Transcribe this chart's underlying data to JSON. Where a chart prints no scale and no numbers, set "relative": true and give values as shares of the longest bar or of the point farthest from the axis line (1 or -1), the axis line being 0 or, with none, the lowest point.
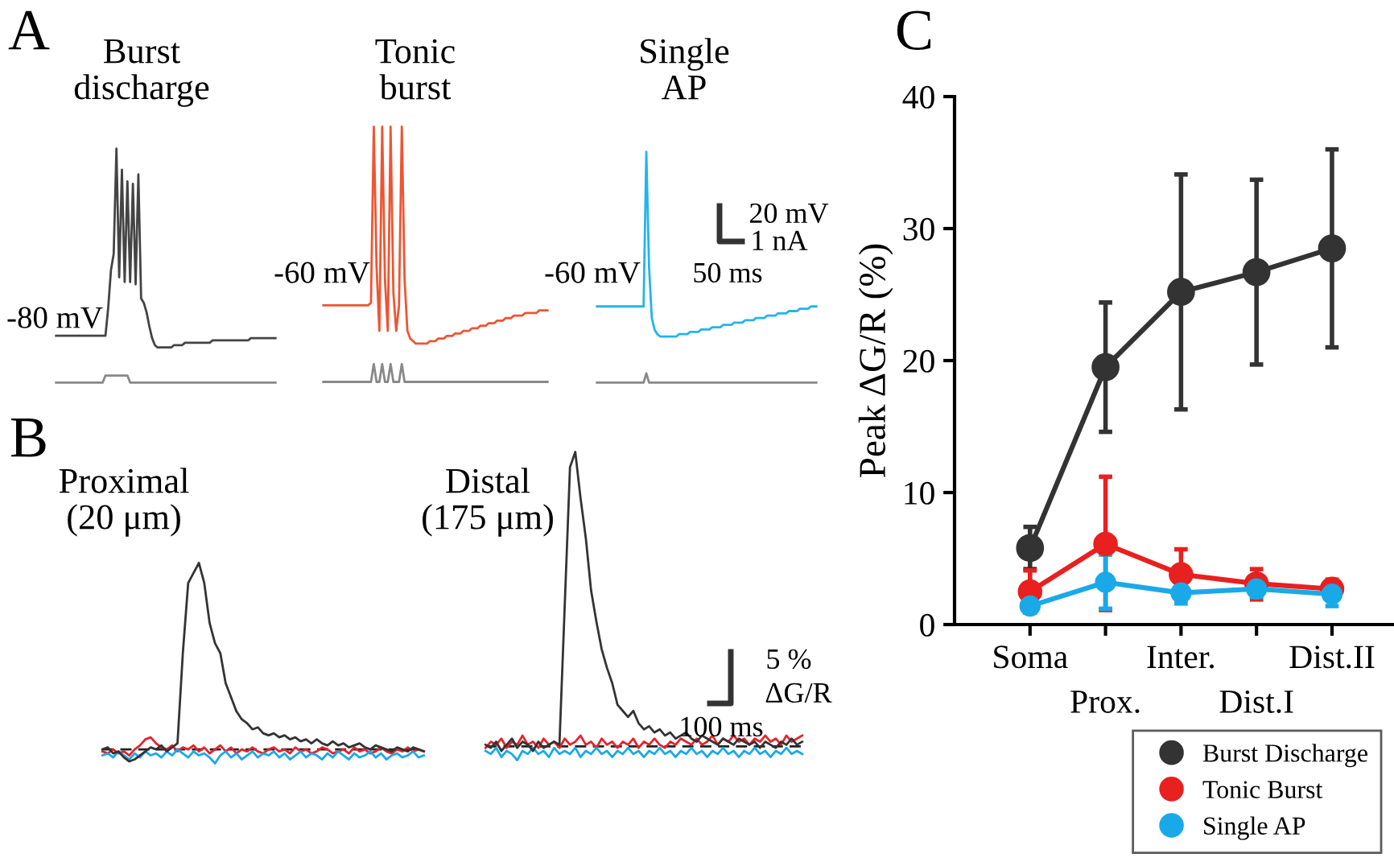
{
  "chart_data": [
    {
      "type": "line",
      "relative": true,
      "title": "Burst\ndischarge",
      "annotations": [
        "A",
        "-80 mV"
      ],
      "categories": [
        null,
        null,
        null,
        null,
        null,
        null,
        null,
        null,
        null,
        null,
        null,
        null,
        null,
        null,
        null,
        null,
        null,
        null,
        null,
        null,
        null,
        null,
        null,
        null,
        null,
        null,
        null,
        null,
        null,
        null,
        null,
        null,
        null,
        null,
        null,
        null,
        null,
        null,
        null,
        null,
        null,
        null,
        null,
        null,
        null,
        null,
        null,
        null,
        null,
        null,
        null,
        null,
        null,
        null,
        null,
        null,
        null,
        null,
        null,
        null,
        null,
        null,
        null,
        null,
        null,
        null,
        null,
        null,
        null,
        null,
        null,
        null,
        null,
        null,
        null,
        null,
        null,
        null,
        null,
        null,
        null
      ],
      "series": [
        {
          "color": "#444444",
          "values": [
            0.2,
            0.2,
            0.2,
            0.2,
            0.2,
            0.2,
            0.2,
            0.2,
            0.2,
            0.2,
            0.2,
            0.2,
            0.2,
            0.2,
            0.2,
            0.2,
            0.2,
            0.2,
            0.2,
            0.32,
            0.48,
            0.55,
            1.0,
            0.45,
            0.91,
            0.43,
            0.86,
            0.43,
            0.85,
            0.42,
            0.89,
            0.36,
            0.34,
            0.3,
            0.24,
            0.19,
            0.16,
            0.15,
            0.15,
            0.15,
            0.15,
            0.15,
            0.15,
            0.16,
            0.16,
            0.16,
            0.16,
            0.17,
            0.17,
            0.17,
            0.17,
            0.17,
            0.17,
            0.17,
            0.17,
            0.17,
            0.17,
            0.18,
            0.18,
            0.18,
            0.18,
            0.18,
            0.18,
            0.18,
            0.18,
            0.18,
            0.18,
            0.18,
            0.18,
            0.18,
            0.18,
            0.19,
            0.19,
            0.19,
            0.19,
            0.19,
            0.19,
            0.19,
            0.19,
            0.19,
            0.19
          ]
        },
        {
          "color": "#888888",
          "values": [
            0,
            0,
            0,
            0,
            0,
            0,
            0,
            0,
            0,
            0,
            0,
            0,
            0,
            0,
            0,
            0,
            0,
            0,
            0.03,
            0.03,
            0.03,
            0.03,
            0.03,
            0.03,
            0.03,
            0.03,
            0.03,
            0,
            0,
            0,
            0,
            0,
            0,
            0,
            0,
            0,
            0,
            0,
            0,
            0,
            0,
            0,
            0,
            0,
            0,
            0,
            0,
            0,
            0,
            0,
            0,
            0,
            0,
            0,
            0,
            0,
            0,
            0,
            0,
            0,
            0,
            0,
            0,
            0,
            0,
            0,
            0,
            0,
            0,
            0,
            0,
            0,
            0,
            0,
            0,
            0,
            0,
            0,
            0,
            0,
            0
          ]
        }
      ]
    },
    {
      "type": "line",
      "relative": true,
      "title": "Tonic\nburst",
      "annotations": [
        "-60 mV"
      ],
      "categories": [
        null,
        null,
        null,
        null,
        null,
        null,
        null,
        null,
        null,
        null,
        null,
        null,
        null,
        null,
        null,
        null,
        null,
        null,
        null,
        null,
        null,
        null,
        null,
        null,
        null,
        null,
        null,
        null,
        null,
        null,
        null,
        null,
        null,
        null,
        null,
        null,
        null,
        null,
        null,
        null,
        null,
        null,
        null,
        null,
        null,
        null,
        null,
        null,
        null,
        null,
        null,
        null,
        null,
        null,
        null,
        null,
        null,
        null,
        null,
        null,
        null,
        null,
        null,
        null,
        null,
        null,
        null,
        null,
        null,
        null,
        null,
        null,
        null,
        null,
        null,
        null,
        null,
        null,
        null,
        null,
        null
      ],
      "series": [
        {
          "color": "#ee5533",
          "values": [
            0.3,
            0.3,
            0.3,
            0.3,
            0.3,
            0.3,
            0.3,
            0.3,
            0.3,
            0.3,
            0.3,
            0.3,
            0.3,
            0.3,
            0.3,
            0.3,
            0.3,
            0.31,
            1.0,
            0.45,
            0.2,
            1.0,
            0.4,
            0.2,
            1.0,
            0.35,
            0.2,
            0.3,
            1.0,
            0.4,
            0.2,
            0.17,
            0.16,
            0.15,
            0.15,
            0.15,
            0.15,
            0.15,
            0.16,
            0.16,
            0.16,
            0.17,
            0.17,
            0.17,
            0.18,
            0.18,
            0.18,
            0.19,
            0.19,
            0.19,
            0.2,
            0.2,
            0.2,
            0.21,
            0.21,
            0.21,
            0.22,
            0.22,
            0.22,
            0.23,
            0.23,
            0.23,
            0.24,
            0.24,
            0.24,
            0.25,
            0.25,
            0.25,
            0.26,
            0.26,
            0.26,
            0.26,
            0.27,
            0.27,
            0.27,
            0.27,
            0.27,
            0.28,
            0.28,
            0.28,
            0.28
          ]
        },
        {
          "color": "#888888",
          "values": [
            0,
            0,
            0,
            0,
            0,
            0,
            0,
            0,
            0,
            0,
            0,
            0,
            0,
            0,
            0,
            0,
            0,
            0,
            0.07,
            0,
            0,
            0.07,
            0,
            0,
            0.07,
            0,
            0,
            0,
            0.07,
            0,
            0,
            0,
            0,
            0,
            0,
            0,
            0,
            0,
            0,
            0,
            0,
            0,
            0,
            0,
            0,
            0,
            0,
            0,
            0,
            0,
            0,
            0,
            0,
            0,
            0,
            0,
            0,
            0,
            0,
            0,
            0,
            0,
            0,
            0,
            0,
            0,
            0,
            0,
            0,
            0,
            0,
            0,
            0,
            0,
            0,
            0,
            0,
            0,
            0,
            0,
            0
          ]
        }
      ]
    },
    {
      "type": "line",
      "relative": true,
      "title": "Single\nAP",
      "annotations": [
        "-60 mV",
        "20 mV",
        "1 nA",
        "50 ms"
      ],
      "categories": [
        null,
        null,
        null,
        null,
        null,
        null,
        null,
        null,
        null,
        null,
        null,
        null,
        null,
        null,
        null,
        null,
        null,
        null,
        null,
        null,
        null,
        null,
        null,
        null,
        null,
        null,
        null,
        null,
        null,
        null,
        null,
        null,
        null,
        null,
        null,
        null,
        null,
        null,
        null,
        null,
        null,
        null,
        null,
        null,
        null,
        null,
        null,
        null,
        null,
        null,
        null,
        null,
        null,
        null,
        null,
        null,
        null,
        null,
        null,
        null,
        null,
        null,
        null,
        null,
        null,
        null,
        null,
        null,
        null,
        null,
        null,
        null,
        null,
        null,
        null,
        null,
        null,
        null,
        null,
        null,
        null
      ],
      "series": [
        {
          "color": "#22b4ec",
          "values": [
            0.33,
            0.33,
            0.33,
            0.33,
            0.33,
            0.33,
            0.33,
            0.33,
            0.33,
            0.33,
            0.33,
            0.33,
            0.33,
            0.33,
            0.33,
            0.33,
            0.33,
            0.33,
            1.0,
            0.5,
            0.28,
            0.23,
            0.21,
            0.2,
            0.2,
            0.2,
            0.2,
            0.2,
            0.2,
            0.2,
            0.21,
            0.21,
            0.21,
            0.21,
            0.22,
            0.22,
            0.22,
            0.22,
            0.23,
            0.23,
            0.23,
            0.23,
            0.24,
            0.24,
            0.24,
            0.24,
            0.25,
            0.25,
            0.25,
            0.25,
            0.26,
            0.26,
            0.26,
            0.26,
            0.27,
            0.27,
            0.27,
            0.27,
            0.28,
            0.28,
            0.28,
            0.28,
            0.29,
            0.29,
            0.29,
            0.29,
            0.3,
            0.3,
            0.3,
            0.3,
            0.31,
            0.31,
            0.31,
            0.31,
            0.32,
            0.32,
            0.32,
            0.32,
            0.33,
            0.33,
            0.33
          ]
        },
        {
          "color": "#888888",
          "values": [
            0,
            0,
            0,
            0,
            0,
            0,
            0,
            0,
            0,
            0,
            0,
            0,
            0,
            0,
            0,
            0,
            0,
            0,
            0.04,
            0,
            0,
            0,
            0,
            0,
            0,
            0,
            0,
            0,
            0,
            0,
            0,
            0,
            0,
            0,
            0,
            0,
            0,
            0,
            0,
            0,
            0,
            0,
            0,
            0,
            0,
            0,
            0,
            0,
            0,
            0,
            0,
            0,
            0,
            0,
            0,
            0,
            0,
            0,
            0,
            0,
            0,
            0,
            0,
            0,
            0,
            0,
            0,
            0,
            0,
            0,
            0,
            0,
            0,
            0,
            0,
            0,
            0,
            0,
            0,
            0,
            0
          ]
        }
      ]
    },
    {
      "type": "line",
      "relative": true,
      "title": "Proximal\n(20 μm)",
      "annotations": [
        "B"
      ],
      "categories": [
        null,
        null,
        null,
        null,
        null,
        null,
        null,
        null,
        null,
        null,
        null,
        null,
        null,
        null,
        null,
        null,
        null,
        null,
        null,
        null,
        null,
        null,
        null,
        null,
        null,
        null,
        null,
        null,
        null,
        null,
        null,
        null,
        null,
        null,
        null,
        null,
        null,
        null,
        null,
        null,
        null,
        null,
        null,
        null,
        null,
        null,
        null,
        null,
        null,
        null,
        null,
        null,
        null,
        null,
        null,
        null,
        null,
        null,
        null,
        null,
        null
      ],
      "series": [
        {
          "color": "#222222",
          "line_style": "dashed",
          "values": [
            0.07,
            0.07,
            0.07,
            0.07,
            0.07,
            0.07,
            0.07,
            0.07,
            0.07,
            0.07,
            0.07,
            0.07,
            0.07,
            0.07,
            0.07,
            0.07,
            0.07,
            0.07,
            0.07,
            0.07,
            0.07,
            0.07,
            0.07,
            0.07,
            0.07,
            0.07,
            0.07,
            0.07,
            0.07,
            0.07,
            0.07,
            0.07,
            0.07,
            0.07,
            0.07,
            0.07,
            0.07,
            0.07,
            0.07,
            0.07,
            0.07,
            0.07,
            0.07,
            0.07,
            0.07,
            0.07,
            0.07,
            0.07,
            0.07,
            0.07,
            0.07,
            0.07,
            0.07,
            0.07,
            0.07,
            0.07,
            0.07,
            0.07,
            0.07,
            0.07,
            0.07
          ]
        },
        {
          "color": "#e8222a",
          "values": [
            0.06,
            0.05,
            0.07,
            0.05,
            0.06,
            0.04,
            0.07,
            0.09,
            0.12,
            0.13,
            0.1,
            0.08,
            0.07,
            0.09,
            0.06,
            0.08,
            0.07,
            0.09,
            0.06,
            0.08,
            0.05,
            0.07,
            0.09,
            0.06,
            0.08,
            0.05,
            0.07,
            0.06,
            0.08,
            0.06,
            0.05,
            0.07,
            0.08,
            0.06,
            0.07,
            0.05,
            0.08,
            0.06,
            0.07,
            0.05,
            0.06,
            0.08,
            0.07,
            0.05,
            0.06,
            0.07,
            0.05,
            0.08,
            0.06,
            0.07,
            0.05,
            0.06,
            0.08,
            0.06,
            0.05,
            0.07,
            0.06,
            0.08,
            0.06,
            0.07,
            0.06
          ]
        },
        {
          "color": "#1aa9e8",
          "values": [
            0.04,
            0.05,
            0.03,
            0.06,
            0.04,
            0.02,
            0.05,
            0.03,
            0.06,
            0.04,
            0.05,
            0.03,
            0.06,
            0.04,
            0.07,
            0.05,
            0.03,
            0.06,
            0.04,
            0.05,
            0.03,
            0.0,
            0.04,
            0.06,
            0.03,
            0.05,
            0.02,
            0.04,
            0.06,
            0.03,
            0.05,
            0.04,
            0.06,
            0.03,
            0.05,
            0.02,
            0.04,
            0.06,
            0.03,
            0.05,
            0.04,
            0.02,
            0.05,
            0.03,
            0.06,
            0.04,
            0.02,
            0.05,
            0.03,
            0.04,
            0.06,
            0.03,
            0.05,
            0.02,
            0.04,
            0.05,
            0.03,
            0.04,
            0.06,
            0.03,
            0.04
          ]
        },
        {
          "color": "#333333",
          "values": [
            0.07,
            0.08,
            0.05,
            0.06,
            0.03,
            0.01,
            0.02,
            0.04,
            0.06,
            0.08,
            0.07,
            0.09,
            0.06,
            0.08,
            0.1,
            0.55,
            0.9,
            0.95,
            1.0,
            0.9,
            0.7,
            0.6,
            0.55,
            0.4,
            0.33,
            0.26,
            0.22,
            0.2,
            0.17,
            0.18,
            0.15,
            0.14,
            0.15,
            0.13,
            0.14,
            0.12,
            0.13,
            0.11,
            0.12,
            0.1,
            0.12,
            0.1,
            0.09,
            0.11,
            0.09,
            0.1,
            0.08,
            0.09,
            0.1,
            0.08,
            0.07,
            0.09,
            0.08,
            0.07,
            0.06,
            0.08,
            0.07,
            0.06,
            0.08,
            0.07,
            0.06
          ]
        }
      ]
    },
    {
      "type": "line",
      "relative": true,
      "title": "Distal\n(175 μm)",
      "annotations": [
        "5 %",
        "ΔG/R",
        "100 ms"
      ],
      "categories": [
        null,
        null,
        null,
        null,
        null,
        null,
        null,
        null,
        null,
        null,
        null,
        null,
        null,
        null,
        null,
        null,
        null,
        null,
        null,
        null,
        null,
        null,
        null,
        null,
        null,
        null,
        null,
        null,
        null,
        null,
        null,
        null,
        null,
        null,
        null,
        null,
        null,
        null,
        null,
        null,
        null,
        null,
        null,
        null,
        null,
        null,
        null,
        null,
        null,
        null,
        null,
        null,
        null,
        null,
        null,
        null,
        null,
        null,
        null,
        null,
        null
      ],
      "series": [
        {
          "color": "#222222",
          "line_style": "dashed",
          "values": [
            0.045,
            0.045,
            0.045,
            0.045,
            0.045,
            0.045,
            0.045,
            0.045,
            0.045,
            0.045,
            0.045,
            0.045,
            0.045,
            0.045,
            0.045,
            0.045,
            0.045,
            0.045,
            0.045,
            0.045,
            0.045,
            0.045,
            0.045,
            0.045,
            0.045,
            0.045,
            0.045,
            0.045,
            0.045,
            0.045,
            0.045,
            0.045,
            0.045,
            0.045,
            0.045,
            0.045,
            0.045,
            0.045,
            0.045,
            0.045,
            0.045,
            0.045,
            0.045,
            0.045,
            0.045,
            0.045,
            0.045,
            0.045,
            0.045,
            0.045,
            0.045,
            0.045,
            0.045,
            0.045,
            0.045,
            0.045,
            0.045,
            0.045,
            0.045,
            0.045,
            0.045
          ]
        },
        {
          "color": "#e8222a",
          "values": [
            0.04,
            0.06,
            0.05,
            0.07,
            0.04,
            0.06,
            0.05,
            0.08,
            0.05,
            0.06,
            0.04,
            0.07,
            0.05,
            0.06,
            0.04,
            0.07,
            0.05,
            0.06,
            0.08,
            0.05,
            0.06,
            0.04,
            0.07,
            0.05,
            0.06,
            0.04,
            0.06,
            0.05,
            0.07,
            0.04,
            0.06,
            0.05,
            0.07,
            0.05,
            0.04,
            0.06,
            0.05,
            0.07,
            0.06,
            0.05,
            0.07,
            0.05,
            0.06,
            0.08,
            0.05,
            0.07,
            0.06,
            0.08,
            0.06,
            0.07,
            0.05,
            0.07,
            0.06,
            0.08,
            0.06,
            0.07,
            0.05,
            0.08,
            0.06,
            0.07,
            0.08
          ]
        },
        {
          "color": "#1aa9e8",
          "values": [
            0.03,
            0.02,
            0.04,
            0.01,
            0.03,
            0.02,
            0.0,
            0.03,
            0.02,
            0.04,
            0.02,
            0.03,
            0.01,
            0.04,
            0.02,
            0.03,
            0.02,
            0.04,
            0.01,
            0.03,
            0.02,
            0.04,
            0.02,
            0.03,
            0.01,
            0.03,
            0.02,
            0.04,
            0.02,
            0.03,
            0.01,
            0.03,
            0.02,
            0.04,
            0.02,
            0.03,
            0.01,
            0.03,
            0.02,
            0.04,
            0.02,
            0.03,
            0.01,
            0.03,
            0.02,
            0.04,
            0.02,
            0.03,
            0.01,
            0.03,
            0.02,
            0.04,
            0.02,
            0.03,
            0.01,
            0.03,
            0.02,
            0.04,
            0.02,
            0.03,
            0.02
          ]
        },
        {
          "color": "#333333",
          "values": [
            0.05,
            0.04,
            0.06,
            0.03,
            0.05,
            0.07,
            0.04,
            0.06,
            0.05,
            0.03,
            0.06,
            0.04,
            0.05,
            0.06,
            0.05,
            0.5,
            0.95,
            1.0,
            0.85,
            0.72,
            0.55,
            0.45,
            0.36,
            0.3,
            0.25,
            0.18,
            0.16,
            0.14,
            0.16,
            0.12,
            0.1,
            0.11,
            0.09,
            0.1,
            0.08,
            0.09,
            0.07,
            0.08,
            0.09,
            0.07,
            0.06,
            0.08,
            0.07,
            0.06,
            0.05,
            0.07,
            0.06,
            0.05,
            0.07,
            0.06,
            0.05,
            0.06,
            0.04,
            0.06,
            0.05,
            0.04,
            0.06,
            0.05,
            0.07,
            0.05,
            0.06
          ]
        }
      ]
    },
    {
      "type": "line",
      "ylabel": "Peak ΔG/R (%)",
      "annotations": [
        "C"
      ],
      "categories": [
        "Soma",
        "Prox.",
        "Inter.",
        "Dist.I",
        "Dist.II"
      ],
      "ylim": [
        0,
        40
      ],
      "yticks": [
        0,
        10,
        20,
        30,
        40
      ],
      "marker": "circle",
      "legend": "bottom right",
      "series": [
        {
          "name": "Burst Discharge",
          "color": "#333333",
          "values": [
            5.8,
            19.5,
            25.2,
            26.7,
            28.5
          ],
          "errors": [
            [
              4.2,
              7.4
            ],
            [
              14.6,
              24.4
            ],
            [
              16.3,
              34.1
            ],
            [
              19.7,
              33.7
            ],
            [
              21.0,
              36.0
            ]
          ]
        },
        {
          "name": "Tonic Burst",
          "color": "#e8201f",
          "values": [
            2.5,
            6.1,
            3.8,
            3.1,
            2.7
          ],
          "errors": [
            1.6,
            [
              1.1,
              11.2
            ],
            1.9,
            [
              1.9,
              4.2
            ],
            0.7
          ]
        },
        {
          "name": "Single AP",
          "color": "#1aa9e8",
          "values": [
            1.4,
            3.2,
            2.4,
            2.7,
            2.3
          ],
          "errors": [
            0.5,
            [
              1.2,
              5.3
            ],
            0.8,
            0.6,
            0.9
          ]
        }
      ]
    }
  ]
}
